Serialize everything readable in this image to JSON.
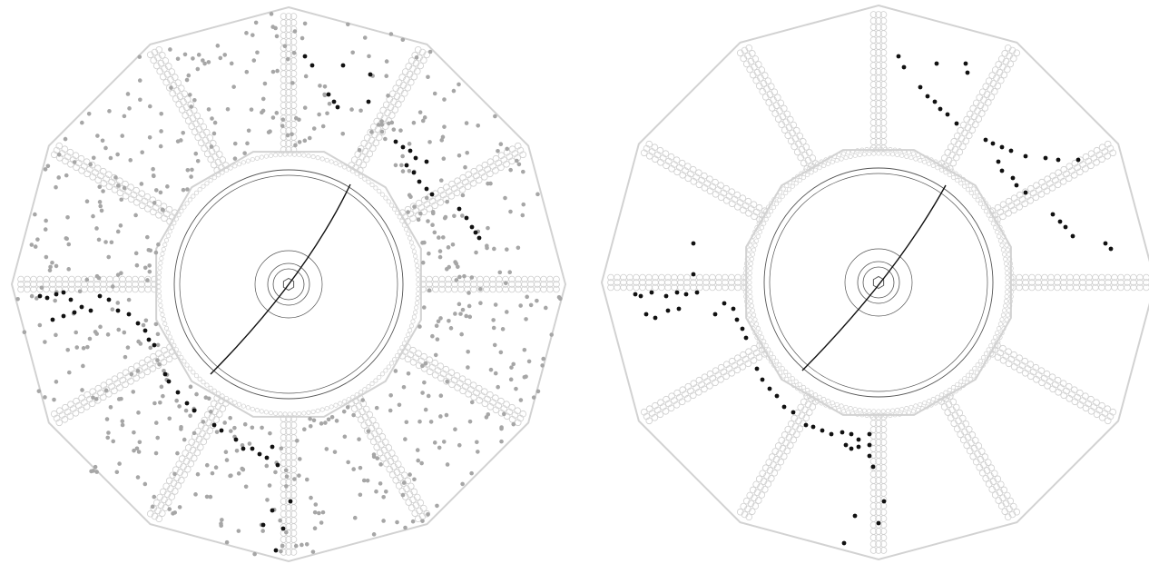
{
  "figure": {
    "panels": [
      {
        "id": "left",
        "description_hidden": "",
        "background_hits": "many",
        "track_hits": "present",
        "track": "present"
      },
      {
        "id": "right",
        "description_hidden": "",
        "background_hits": "none",
        "track_hits": "present",
        "track": "present"
      }
    ],
    "colors": {
      "detector_outline": "#d2d2d2",
      "detector_cells": "#cfcfcf",
      "inner_rings": "#555555",
      "track_line": "#111111",
      "track_hits": "#111111",
      "background_hits": "#a6a6a6"
    }
  }
}
